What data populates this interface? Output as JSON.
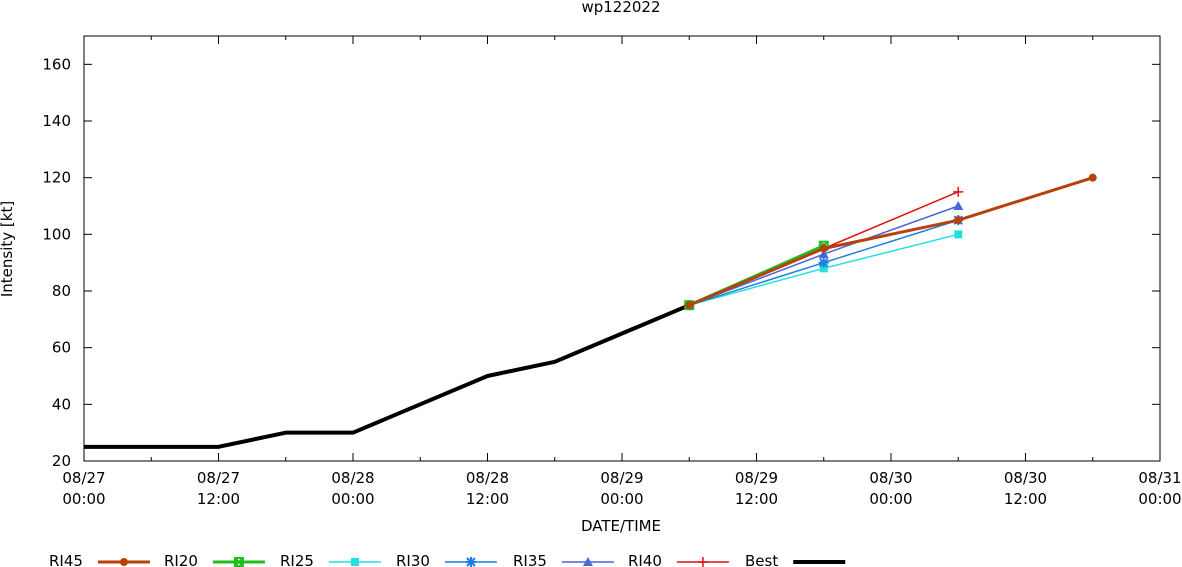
{
  "chart_data": {
    "type": "line",
    "title": "wp122022",
    "xlabel": "DATE/TIME",
    "ylabel": "Intensity [kt]",
    "xlim": [
      "2022-08-27 00:00",
      "2022-08-31 00:00"
    ],
    "ylim": [
      20,
      170
    ],
    "yticks": [
      20,
      40,
      60,
      80,
      100,
      120,
      140,
      160
    ],
    "xticks": [
      {
        "x": "2022-08-27 00:00",
        "date": "08/27",
        "time": "00:00"
      },
      {
        "x": "2022-08-27 12:00",
        "date": "08/27",
        "time": "12:00"
      },
      {
        "x": "2022-08-28 00:00",
        "date": "08/28",
        "time": "00:00"
      },
      {
        "x": "2022-08-28 12:00",
        "date": "08/28",
        "time": "12:00"
      },
      {
        "x": "2022-08-29 00:00",
        "date": "08/29",
        "time": "00:00"
      },
      {
        "x": "2022-08-29 12:00",
        "date": "08/29",
        "time": "12:00"
      },
      {
        "x": "2022-08-30 00:00",
        "date": "08/30",
        "time": "00:00"
      },
      {
        "x": "2022-08-30 12:00",
        "date": "08/30",
        "time": "12:00"
      },
      {
        "x": "2022-08-31 00:00",
        "date": "08/31",
        "time": "00:00"
      }
    ],
    "grid": false,
    "legend": "bottom",
    "series": [
      {
        "name": "RI45",
        "color": "#b8400a",
        "marker": "circle",
        "width": 3,
        "points": [
          [
            "2022-08-29 06:00",
            75
          ],
          [
            "2022-08-29 18:00",
            95
          ],
          [
            "2022-08-30 06:00",
            105
          ],
          [
            "2022-08-30 18:00",
            120
          ]
        ]
      },
      {
        "name": "RI20",
        "color": "#1fbf1f",
        "marker": "x-square",
        "width": 3,
        "points": [
          [
            "2022-08-29 06:00",
            75
          ],
          [
            "2022-08-29 18:00",
            96
          ]
        ]
      },
      {
        "name": "RI25",
        "color": "#22e0e0",
        "marker": "square",
        "width": 1.5,
        "points": [
          [
            "2022-08-29 06:00",
            75
          ],
          [
            "2022-08-29 18:00",
            88
          ],
          [
            "2022-08-30 06:00",
            100
          ]
        ]
      },
      {
        "name": "RI30",
        "color": "#1a7fe0",
        "marker": "star",
        "width": 1.5,
        "points": [
          [
            "2022-08-29 06:00",
            75
          ],
          [
            "2022-08-29 18:00",
            90
          ],
          [
            "2022-08-30 06:00",
            105
          ]
        ]
      },
      {
        "name": "RI35",
        "color": "#4a66d6",
        "marker": "triangle",
        "width": 1.5,
        "points": [
          [
            "2022-08-29 06:00",
            75
          ],
          [
            "2022-08-29 18:00",
            93
          ],
          [
            "2022-08-30 06:00",
            110
          ]
        ]
      },
      {
        "name": "RI40",
        "color": "#e01010",
        "marker": "plus",
        "width": 1.5,
        "points": [
          [
            "2022-08-29 06:00",
            75
          ],
          [
            "2022-08-29 18:00",
            95
          ],
          [
            "2022-08-30 06:00",
            115
          ]
        ]
      },
      {
        "name": "Best",
        "color": "#000000",
        "marker": "none",
        "width": 4,
        "points": [
          [
            "2022-08-27 00:00",
            25
          ],
          [
            "2022-08-27 06:00",
            25
          ],
          [
            "2022-08-27 12:00",
            25
          ],
          [
            "2022-08-27 18:00",
            30
          ],
          [
            "2022-08-28 00:00",
            30
          ],
          [
            "2022-08-28 06:00",
            40
          ],
          [
            "2022-08-28 12:00",
            50
          ],
          [
            "2022-08-28 18:00",
            55
          ],
          [
            "2022-08-29 00:00",
            65
          ],
          [
            "2022-08-29 06:00",
            75
          ]
        ]
      }
    ]
  }
}
